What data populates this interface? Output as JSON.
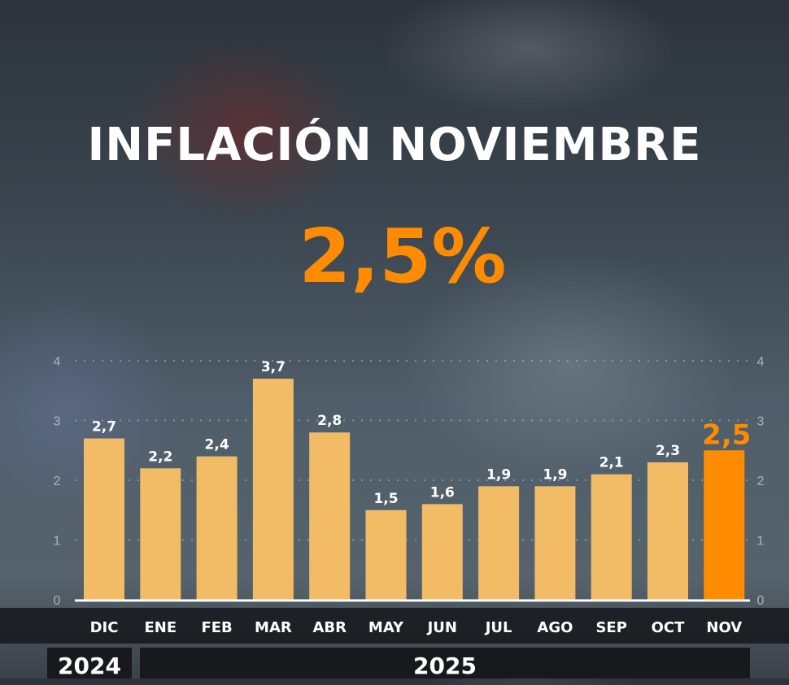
{
  "header": {
    "title": "INFLACIÓN NOVIEMBRE",
    "headline_value": "2,5%"
  },
  "chart_data": {
    "type": "bar",
    "title": "INFLACIÓN NOVIEMBRE",
    "categories": [
      "DIC",
      "ENE",
      "FEB",
      "MAR",
      "ABR",
      "MAY",
      "JUN",
      "JUL",
      "AGO",
      "SEP",
      "OCT",
      "NOV"
    ],
    "values": [
      2.7,
      2.2,
      2.4,
      3.7,
      2.8,
      1.5,
      1.6,
      1.9,
      1.9,
      2.1,
      2.3,
      2.5
    ],
    "value_labels": [
      "2,7",
      "2,2",
      "2,4",
      "3,7",
      "2,8",
      "1,5",
      "1,6",
      "1,9",
      "1,9",
      "2,1",
      "2,3",
      "2,5"
    ],
    "highlight_index": 11,
    "ylim": [
      0,
      4
    ],
    "yticks": [
      0,
      1,
      2,
      3,
      4
    ],
    "grid": true,
    "year_groups": [
      {
        "label": "2024",
        "count": 1
      },
      {
        "label": "2025",
        "count": 11
      }
    ],
    "colors": {
      "bar": "#f2bb66",
      "highlight": "#ff8c00",
      "label": "#ffffff"
    }
  }
}
